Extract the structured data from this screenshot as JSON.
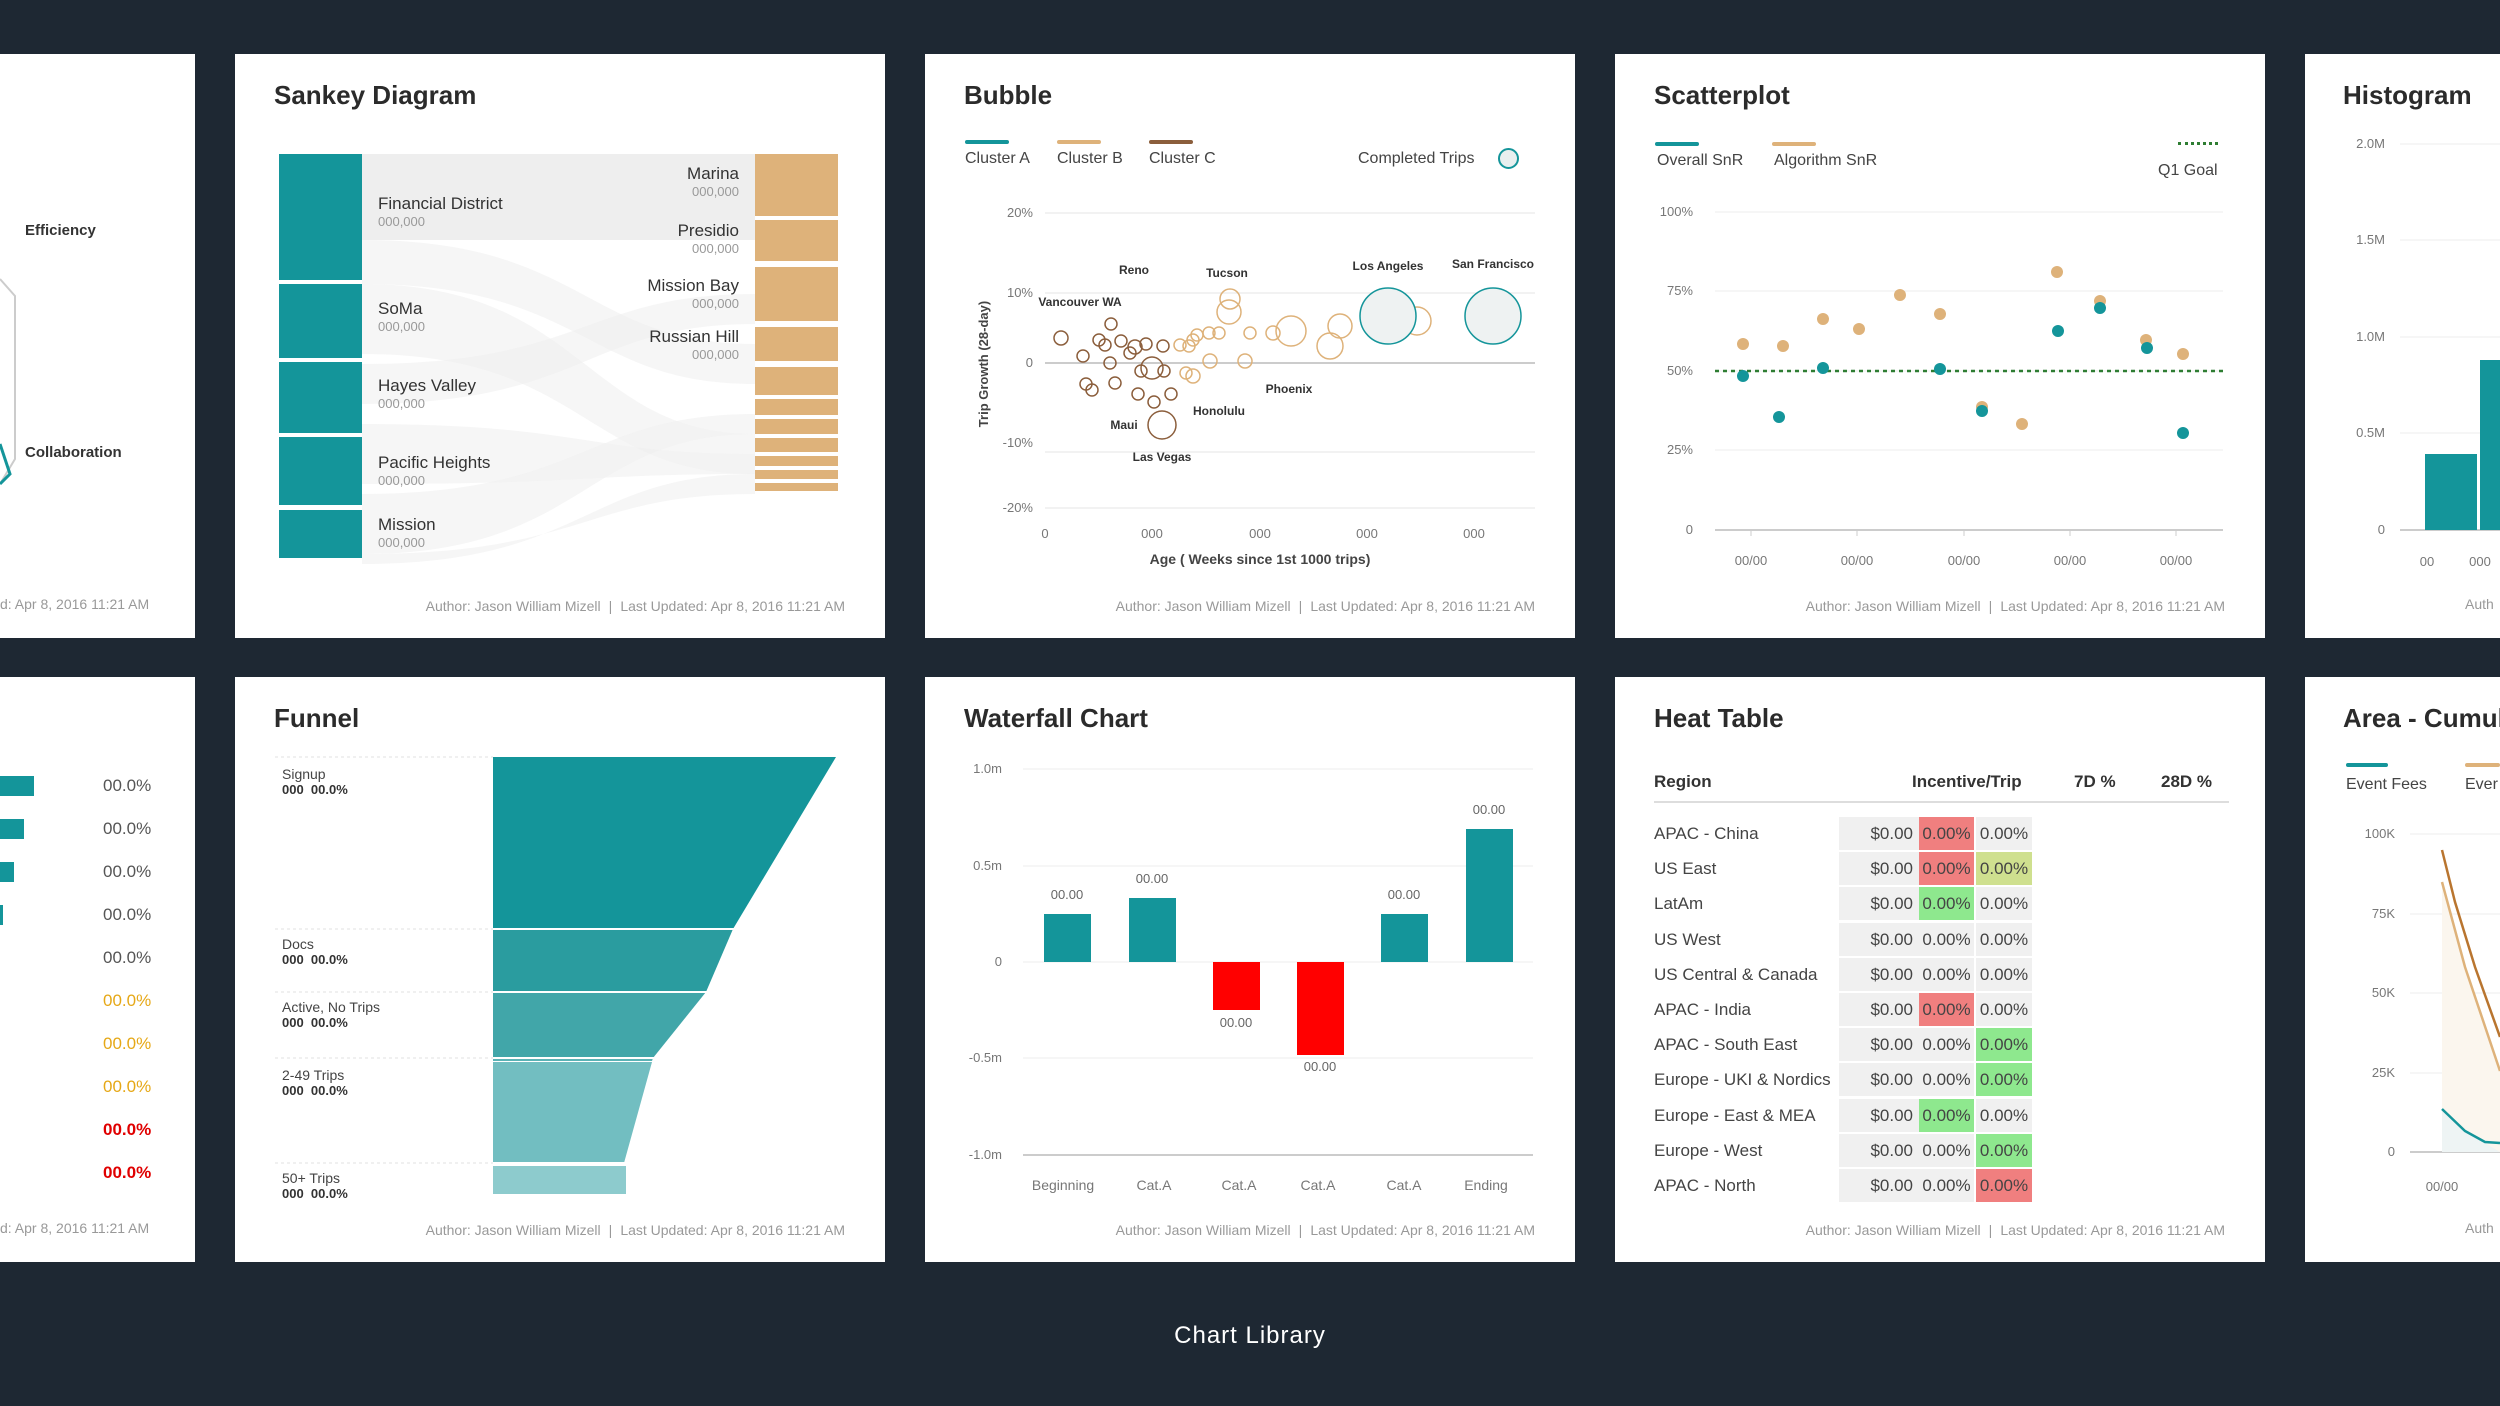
{
  "page_caption": "Chart Library",
  "footer": {
    "author": "Author: Jason William Mizell",
    "updated": "Last Updated: Apr 8, 2016 11:21 AM"
  },
  "radar_partial": {
    "labels": [
      "Efficiency",
      "Collaboration"
    ],
    "footer": "d: Apr 8, 2016 11:21 AM"
  },
  "sankey": {
    "title": "Sankey Diagram",
    "sources": [
      {
        "name": "Financial District",
        "value": "000,000"
      },
      {
        "name": "SoMa",
        "value": "000,000"
      },
      {
        "name": "Hayes Valley",
        "value": "000,000"
      },
      {
        "name": "Pacific Heights",
        "value": "000,000"
      },
      {
        "name": "Mission",
        "value": "000,000"
      }
    ],
    "targets": [
      {
        "name": "Marina",
        "value": "000,000"
      },
      {
        "name": "Presidio",
        "value": "000,000"
      },
      {
        "name": "Mission Bay",
        "value": "000,000"
      },
      {
        "name": "Russian Hill",
        "value": "000,000"
      }
    ],
    "colors": {
      "source": "#14959a",
      "target": "#deb27a",
      "link": "#e8e8e8"
    }
  },
  "bubble": {
    "title": "Bubble",
    "legend": [
      "Cluster A",
      "Cluster B",
      "Cluster C"
    ],
    "legend_colors": [
      "#14959a",
      "#deb27a",
      "#8b5e3c"
    ],
    "size_legend": "Completed Trips",
    "ylabel": "Trip Growth (28-day)",
    "xlabel": "Age ( Weeks since 1st 1000 trips)",
    "yticks": [
      "20%",
      "10%",
      "0",
      "-10%",
      "-20%"
    ],
    "xticks": [
      "0",
      "000",
      "000",
      "000",
      "000"
    ],
    "cities": [
      "Reno",
      "Tucson",
      "Los Angeles",
      "San Francisco",
      "Vancouver WA",
      "Phoenix",
      "Honolulu",
      "Maui",
      "Las Vegas"
    ]
  },
  "scatter": {
    "title": "Scatterplot",
    "legend": [
      "Overall SnR",
      "Algorithm SnR"
    ],
    "goal_label": "Q1 Goal",
    "yticks": [
      "100%",
      "75%",
      "50%",
      "25%",
      "0"
    ],
    "xticks": [
      "00/00",
      "00/00",
      "00/00",
      "00/00",
      "00/00"
    ],
    "colors": {
      "overall": "#14959a",
      "algorithm": "#deb27a",
      "goal": "#2e7d32"
    }
  },
  "histogram_partial": {
    "title": "Histogram",
    "yticks": [
      "2.0M",
      "1.5M",
      "1.0M",
      "0.5M",
      "0"
    ],
    "xticks": [
      "00",
      "000"
    ],
    "footer": "Auth"
  },
  "bars_partial": {
    "values": [
      "00.0%",
      "00.0%",
      "00.0%",
      "00.0%",
      "00.0%",
      "00.0%",
      "00.0%",
      "00.0%",
      "00.0%",
      "00.0%"
    ],
    "footer": "d: Apr 8, 2016 11:21 AM"
  },
  "funnel": {
    "title": "Funnel",
    "stages": [
      {
        "name": "Signup",
        "stat": "000  00.0%"
      },
      {
        "name": "Docs",
        "stat": "000  00.0%"
      },
      {
        "name": "Active, No Trips",
        "stat": "000  00.0%"
      },
      {
        "name": "2-49 Trips",
        "stat": "000  00.0%"
      },
      {
        "name": "50+ Trips",
        "stat": "000  00.0%"
      }
    ]
  },
  "waterfall": {
    "title": "Waterfall Chart",
    "yticks": [
      "1.0m",
      "0.5m",
      "0",
      "-0.5m",
      "-1.0m"
    ],
    "categories": [
      "Beginning",
      "Cat.A",
      "Cat.A",
      "Cat.A",
      "Cat.A",
      "Ending"
    ],
    "value_labels": [
      "00.00",
      "00.00",
      "00.00",
      "00.00",
      "00.00",
      "00.00"
    ],
    "colors": {
      "positive": "#14959a",
      "negative": "#ff0000"
    }
  },
  "heat_table": {
    "title": "Heat Table",
    "headers": [
      "Region",
      "Incentive/Trip",
      "7D %",
      "28D %"
    ],
    "rows": [
      {
        "region": "APAC - China",
        "incentive": "$0.00",
        "d7": "0.00%",
        "d28": "0.00%",
        "c7": "#f07f7f",
        "c28": "#f0f0f0"
      },
      {
        "region": "US East",
        "incentive": "$0.00",
        "d7": "0.00%",
        "d28": "0.00%",
        "c7": "#f07f7f",
        "c28": "#cfe08f"
      },
      {
        "region": "LatAm",
        "incentive": "$0.00",
        "d7": "0.00%",
        "d28": "0.00%",
        "c7": "#8ee88e",
        "c28": "#f0f0f0"
      },
      {
        "region": "US West",
        "incentive": "$0.00",
        "d7": "0.00%",
        "d28": "0.00%",
        "c7": "#f0f0f0",
        "c28": "#f0f0f0"
      },
      {
        "region": "US Central & Canada",
        "incentive": "$0.00",
        "d7": "0.00%",
        "d28": "0.00%",
        "c7": "#f0f0f0",
        "c28": "#f0f0f0"
      },
      {
        "region": "APAC - India",
        "incentive": "$0.00",
        "d7": "0.00%",
        "d28": "0.00%",
        "c7": "#f07f7f",
        "c28": "#f0f0f0"
      },
      {
        "region": "APAC - South East",
        "incentive": "$0.00",
        "d7": "0.00%",
        "d28": "0.00%",
        "c7": "#f0f0f0",
        "c28": "#8ee88e"
      },
      {
        "region": "Europe - UKI & Nordics",
        "incentive": "$0.00",
        "d7": "0.00%",
        "d28": "0.00%",
        "c7": "#f0f0f0",
        "c28": "#8ee88e"
      },
      {
        "region": "Europe - East & MEA",
        "incentive": "$0.00",
        "d7": "0.00%",
        "d28": "0.00%",
        "c7": "#8ee88e",
        "c28": "#f0f0f0"
      },
      {
        "region": "Europe - West",
        "incentive": "$0.00",
        "d7": "0.00%",
        "d28": "0.00%",
        "c7": "#f0f0f0",
        "c28": "#8ee88e"
      },
      {
        "region": "APAC - North",
        "incentive": "$0.00",
        "d7": "0.00%",
        "d28": "0.00%",
        "c7": "#f0f0f0",
        "c28": "#f07f7f"
      }
    ]
  },
  "area_partial": {
    "title": "Area - Cumula",
    "legend": [
      "Event Fees",
      "Ever"
    ],
    "yticks": [
      "100K",
      "75K",
      "50K",
      "25K",
      "0"
    ],
    "xtick": "00/00",
    "footer": "Auth"
  }
}
